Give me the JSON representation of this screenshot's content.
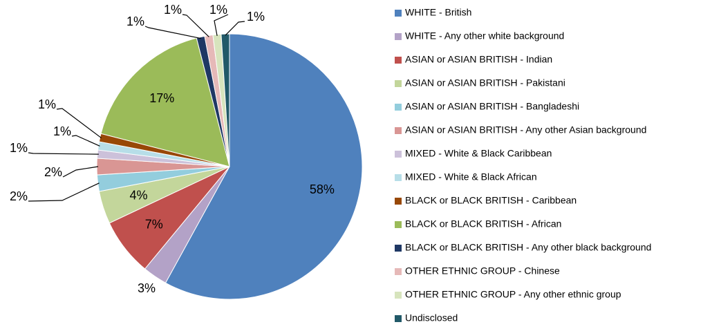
{
  "chart_data": {
    "type": "pie",
    "categories": [
      "WHITE - British",
      "WHITE - Any other white background",
      "ASIAN or ASIAN BRITISH - Indian",
      "ASIAN or ASIAN BRITISH - Pakistani",
      "ASIAN or ASIAN BRITISH - Bangladeshi",
      "ASIAN or ASIAN BRITISH - Any other Asian background",
      "MIXED - White & Black Caribbean",
      "MIXED - White & Black African",
      "BLACK or BLACK BRITISH - Caribbean",
      "BLACK or BLACK BRITISH - African",
      "BLACK or BLACK BRITISH - Any other black background",
      "OTHER ETHNIC GROUP - Chinese",
      "OTHER ETHNIC GROUP - Any other ethnic group",
      "Undisclosed"
    ],
    "values": [
      58,
      3,
      7,
      4,
      2,
      2,
      1,
      1,
      1,
      17,
      1,
      1,
      1,
      1
    ],
    "value_labels": [
      "58%",
      "3%",
      "7%",
      "4%",
      "2%",
      "2%",
      "1%",
      "1%",
      "1%",
      "17%",
      "1%",
      "1%",
      "1%",
      "1%"
    ],
    "colors": [
      "#4f81bd",
      "#b3a2c7",
      "#c0504d",
      "#c3d69b",
      "#93cddd",
      "#d99694",
      "#ccc1da",
      "#b7dee8",
      "#984807",
      "#9bbb59",
      "#1f3864",
      "#e6b9b8",
      "#d7e4bd",
      "#215968"
    ],
    "legend": "right"
  }
}
